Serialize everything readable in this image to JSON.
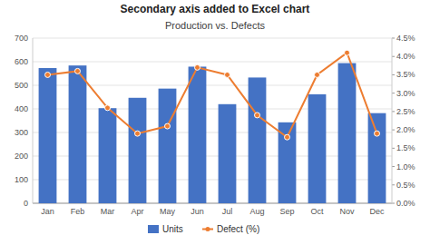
{
  "chart_data": {
    "type": "bar",
    "title": "Production vs. Defects",
    "annotations": [
      "Secondary axis added to Excel chart"
    ],
    "categories": [
      "Jan",
      "Feb",
      "Mar",
      "Apr",
      "May",
      "Jun",
      "Jul",
      "Aug",
      "Sep",
      "Oct",
      "Nov",
      "Dec"
    ],
    "series": [
      {
        "name": "Units",
        "type": "bar",
        "color": "#4472C4",
        "values": [
          573,
          584,
          403,
          447,
          486,
          579,
          420,
          533,
          343,
          462,
          594,
          382
        ]
      },
      {
        "name": "Defect (%)",
        "type": "line",
        "color": "#ED7D31",
        "marker": "circle",
        "axis": "y2",
        "values": [
          3.5,
          3.6,
          2.6,
          1.9,
          2.1,
          3.7,
          3.5,
          2.4,
          1.8,
          3.5,
          4.1,
          1.9
        ]
      }
    ],
    "ylim": [
      0,
      700
    ],
    "yticks": [
      0,
      100,
      200,
      300,
      400,
      500,
      600,
      700
    ],
    "y2lim": [
      0.0,
      4.5
    ],
    "y2ticks": [
      {
        "value": 0.0,
        "label": "0.0%"
      },
      {
        "value": 0.5,
        "label": "0.5%"
      },
      {
        "value": 1.0,
        "label": "1.0%"
      },
      {
        "value": 1.5,
        "label": "1.5%"
      },
      {
        "value": 2.0,
        "label": "2.0%"
      },
      {
        "value": 2.5,
        "label": "2.5%"
      },
      {
        "value": 3.0,
        "label": "3.0%"
      },
      {
        "value": 3.5,
        "label": "3.5%"
      },
      {
        "value": 4.0,
        "label": "4.0%"
      },
      {
        "value": 4.5,
        "label": "4.5%"
      }
    ],
    "grid": true,
    "legend": "bottom"
  }
}
